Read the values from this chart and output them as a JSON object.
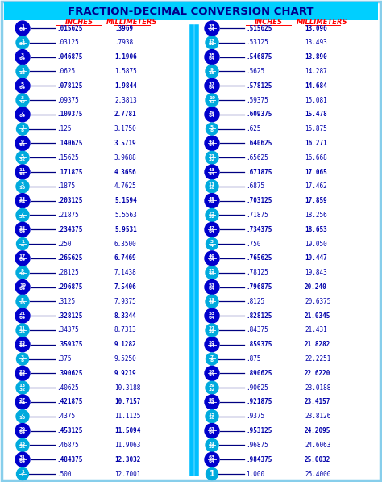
{
  "title": "FRACTION-DECIMAL CONVERSION CHART",
  "title_bg": "#00CFFF",
  "title_color": "#00008B",
  "bg_color": "#FFFFFF",
  "border_color": "#87CEEB",
  "header_color": "#FF0000",
  "rows": [
    {
      "frac_num": "1",
      "frac_den": "64",
      "inches": ".015625",
      "mm": ".3969",
      "bold": true,
      "dark": true
    },
    {
      "frac_num": "1",
      "frac_den": "32",
      "inches": ".03125",
      "mm": ".7938",
      "bold": false,
      "dark": false
    },
    {
      "frac_num": "3",
      "frac_den": "64",
      "inches": ".046875",
      "mm": "1.1906",
      "bold": true,
      "dark": true
    },
    {
      "frac_num": "1",
      "frac_den": "16",
      "inches": ".0625",
      "mm": "1.5875",
      "bold": false,
      "dark": false
    },
    {
      "frac_num": "5",
      "frac_den": "64",
      "inches": ".078125",
      "mm": "1.9844",
      "bold": true,
      "dark": true
    },
    {
      "frac_num": "3",
      "frac_den": "32",
      "inches": ".09375",
      "mm": "2.3813",
      "bold": false,
      "dark": false
    },
    {
      "frac_num": "7",
      "frac_den": "64",
      "inches": ".109375",
      "mm": "2.7781",
      "bold": true,
      "dark": true
    },
    {
      "frac_num": "1",
      "frac_den": "8",
      "inches": ".125",
      "mm": "3.1750",
      "bold": false,
      "dark": false
    },
    {
      "frac_num": "9",
      "frac_den": "64",
      "inches": ".140625",
      "mm": "3.5719",
      "bold": true,
      "dark": true
    },
    {
      "frac_num": "5",
      "frac_den": "32",
      "inches": ".15625",
      "mm": "3.9688",
      "bold": false,
      "dark": false
    },
    {
      "frac_num": "11",
      "frac_den": "64",
      "inches": ".171875",
      "mm": "4.3656",
      "bold": true,
      "dark": true
    },
    {
      "frac_num": "3",
      "frac_den": "16",
      "inches": ".1875",
      "mm": "4.7625",
      "bold": false,
      "dark": false
    },
    {
      "frac_num": "13",
      "frac_den": "64",
      "inches": ".203125",
      "mm": "5.1594",
      "bold": true,
      "dark": true
    },
    {
      "frac_num": "7",
      "frac_den": "32",
      "inches": ".21875",
      "mm": "5.5563",
      "bold": false,
      "dark": false
    },
    {
      "frac_num": "15",
      "frac_den": "64",
      "inches": ".234375",
      "mm": "5.9531",
      "bold": true,
      "dark": true
    },
    {
      "frac_num": "1",
      "frac_den": "4",
      "inches": ".250",
      "mm": "6.3500",
      "bold": false,
      "dark": false
    },
    {
      "frac_num": "17",
      "frac_den": "64",
      "inches": ".265625",
      "mm": "6.7469",
      "bold": true,
      "dark": true
    },
    {
      "frac_num": "9",
      "frac_den": "32",
      "inches": ".28125",
      "mm": "7.1438",
      "bold": false,
      "dark": false
    },
    {
      "frac_num": "19",
      "frac_den": "64",
      "inches": ".296875",
      "mm": "7.5406",
      "bold": true,
      "dark": true
    },
    {
      "frac_num": "5",
      "frac_den": "16",
      "inches": ".3125",
      "mm": "7.9375",
      "bold": false,
      "dark": false
    },
    {
      "frac_num": "21",
      "frac_den": "64",
      "inches": ".328125",
      "mm": "8.3344",
      "bold": true,
      "dark": true
    },
    {
      "frac_num": "11",
      "frac_den": "32",
      "inches": ".34375",
      "mm": "8.7313",
      "bold": false,
      "dark": false
    },
    {
      "frac_num": "23",
      "frac_den": "64",
      "inches": ".359375",
      "mm": "9.1282",
      "bold": true,
      "dark": true
    },
    {
      "frac_num": "3",
      "frac_den": "8",
      "inches": ".375",
      "mm": "9.5250",
      "bold": false,
      "dark": false
    },
    {
      "frac_num": "25",
      "frac_den": "64",
      "inches": ".390625",
      "mm": "9.9219",
      "bold": true,
      "dark": true
    },
    {
      "frac_num": "13",
      "frac_den": "32",
      "inches": ".40625",
      "mm": "10.3188",
      "bold": false,
      "dark": false
    },
    {
      "frac_num": "27",
      "frac_den": "64",
      "inches": ".421875",
      "mm": "10.7157",
      "bold": true,
      "dark": true
    },
    {
      "frac_num": "7",
      "frac_den": "16",
      "inches": ".4375",
      "mm": "11.1125",
      "bold": false,
      "dark": false
    },
    {
      "frac_num": "29",
      "frac_den": "64",
      "inches": ".453125",
      "mm": "11.5094",
      "bold": true,
      "dark": true
    },
    {
      "frac_num": "15",
      "frac_den": "32",
      "inches": ".46875",
      "mm": "11.9063",
      "bold": false,
      "dark": false
    },
    {
      "frac_num": "31",
      "frac_den": "64",
      "inches": ".484375",
      "mm": "12.3032",
      "bold": true,
      "dark": true
    },
    {
      "frac_num": "1",
      "frac_den": "2",
      "inches": ".500",
      "mm": "12.7001",
      "bold": false,
      "dark": false
    }
  ],
  "rows2": [
    {
      "frac_num": "33",
      "frac_den": "64",
      "inches": ".515625",
      "mm": "13.096",
      "bold": true,
      "dark": true
    },
    {
      "frac_num": "17",
      "frac_den": "32",
      "inches": ".53125",
      "mm": "13.493",
      "bold": false,
      "dark": false
    },
    {
      "frac_num": "35",
      "frac_den": "64",
      "inches": ".546875",
      "mm": "13.890",
      "bold": true,
      "dark": true
    },
    {
      "frac_num": "9",
      "frac_den": "16",
      "inches": ".5625",
      "mm": "14.287",
      "bold": false,
      "dark": false
    },
    {
      "frac_num": "37",
      "frac_den": "64",
      "inches": ".578125",
      "mm": "14.684",
      "bold": true,
      "dark": true
    },
    {
      "frac_num": "19",
      "frac_den": "32",
      "inches": ".59375",
      "mm": "15.081",
      "bold": false,
      "dark": false
    },
    {
      "frac_num": "39",
      "frac_den": "64",
      "inches": ".609375",
      "mm": "15.478",
      "bold": true,
      "dark": true
    },
    {
      "frac_num": "5",
      "frac_den": "8",
      "inches": ".625",
      "mm": "15.875",
      "bold": false,
      "dark": false
    },
    {
      "frac_num": "41",
      "frac_den": "64",
      "inches": ".640625",
      "mm": "16.271",
      "bold": true,
      "dark": true
    },
    {
      "frac_num": "21",
      "frac_den": "32",
      "inches": ".65625",
      "mm": "16.668",
      "bold": false,
      "dark": false
    },
    {
      "frac_num": "43",
      "frac_den": "64",
      "inches": ".671875",
      "mm": "17.065",
      "bold": true,
      "dark": true
    },
    {
      "frac_num": "11",
      "frac_den": "16",
      "inches": ".6875",
      "mm": "17.462",
      "bold": false,
      "dark": false
    },
    {
      "frac_num": "45",
      "frac_den": "64",
      "inches": ".703125",
      "mm": "17.859",
      "bold": true,
      "dark": true
    },
    {
      "frac_num": "23",
      "frac_den": "32",
      "inches": ".71875",
      "mm": "18.256",
      "bold": false,
      "dark": false
    },
    {
      "frac_num": "47",
      "frac_den": "64",
      "inches": ".734375",
      "mm": "18.653",
      "bold": true,
      "dark": true
    },
    {
      "frac_num": "3",
      "frac_den": "4",
      "inches": ".750",
      "mm": "19.050",
      "bold": false,
      "dark": false
    },
    {
      "frac_num": "49",
      "frac_den": "64",
      "inches": ".765625",
      "mm": "19.447",
      "bold": true,
      "dark": true
    },
    {
      "frac_num": "25",
      "frac_den": "32",
      "inches": ".78125",
      "mm": "19.843",
      "bold": false,
      "dark": false
    },
    {
      "frac_num": "51",
      "frac_den": "64",
      "inches": ".796875",
      "mm": "20.240",
      "bold": true,
      "dark": true
    },
    {
      "frac_num": "13",
      "frac_den": "16",
      "inches": ".8125",
      "mm": "20.6375",
      "bold": false,
      "dark": false
    },
    {
      "frac_num": "53",
      "frac_den": "64",
      "inches": ".828125",
      "mm": "21.0345",
      "bold": true,
      "dark": true
    },
    {
      "frac_num": "27",
      "frac_den": "32",
      "inches": ".84375",
      "mm": "21.431",
      "bold": false,
      "dark": false
    },
    {
      "frac_num": "55",
      "frac_den": "64",
      "inches": ".859375",
      "mm": "21.8282",
      "bold": true,
      "dark": true
    },
    {
      "frac_num": "7",
      "frac_den": "8",
      "inches": ".875",
      "mm": "22.2251",
      "bold": false,
      "dark": false
    },
    {
      "frac_num": "57",
      "frac_den": "64",
      "inches": ".890625",
      "mm": "22.6220",
      "bold": true,
      "dark": true
    },
    {
      "frac_num": "29",
      "frac_den": "32",
      "inches": ".90625",
      "mm": "23.0188",
      "bold": false,
      "dark": false
    },
    {
      "frac_num": "59",
      "frac_den": "64",
      "inches": ".921875",
      "mm": "23.4157",
      "bold": true,
      "dark": true
    },
    {
      "frac_num": "15",
      "frac_den": "16",
      "inches": ".9375",
      "mm": "23.8126",
      "bold": false,
      "dark": false
    },
    {
      "frac_num": "61",
      "frac_den": "64",
      "inches": ".953125",
      "mm": "24.2095",
      "bold": true,
      "dark": true
    },
    {
      "frac_num": "31",
      "frac_den": "32",
      "inches": ".96875",
      "mm": "24.6063",
      "bold": false,
      "dark": false
    },
    {
      "frac_num": "63",
      "frac_den": "64",
      "inches": ".984375",
      "mm": "25.0032",
      "bold": true,
      "dark": true
    },
    {
      "frac_num": "1",
      "frac_den": "",
      "inches": "1.000",
      "mm": "25.4000",
      "bold": false,
      "dark": false
    }
  ],
  "dark_circle_color": "#0000CC",
  "light_circle_color": "#00AADD",
  "line_color": "#000080",
  "divider_color": "#00BFFF",
  "text_dark_color": "#000099",
  "text_bold_color": "#000099"
}
